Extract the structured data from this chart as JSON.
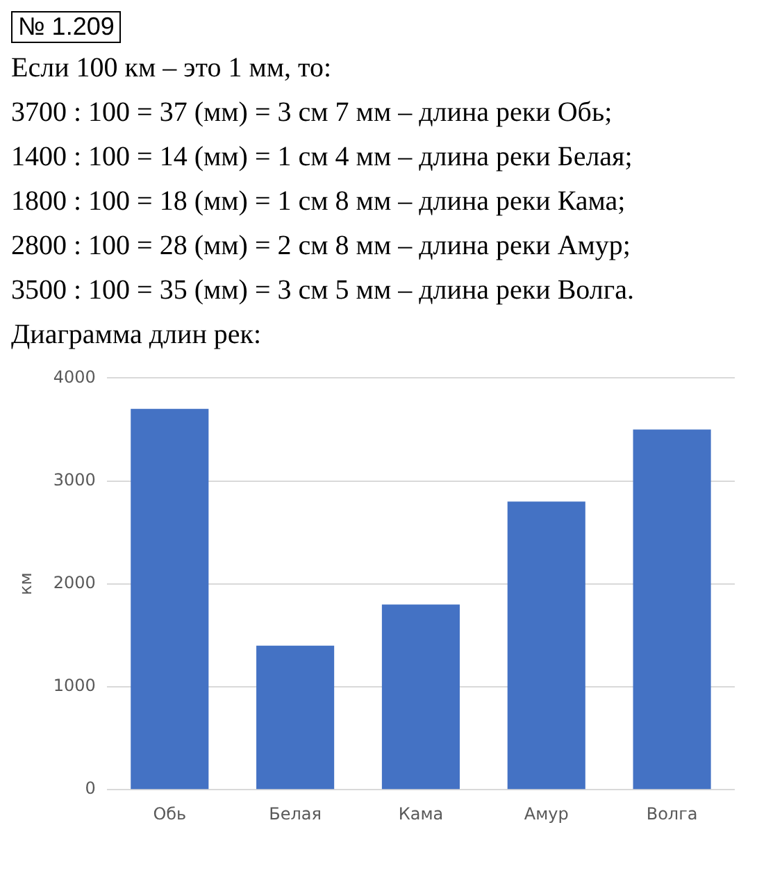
{
  "chart_data": {
    "type": "bar",
    "title": "№ 1.209",
    "annotations": [
      "Если 100 км – это 1 мм, то:",
      "3700 : 100 = 37 (мм) = 3 см 7 мм – длина реки Обь;",
      "1400 : 100 = 14 (мм) = 1 см 4 мм – длина реки Белая;",
      "1800 : 100 = 18 (мм) = 1 см 8 мм – длина реки Кама;",
      "2800 : 100 = 28 (мм) = 2 см 8 мм – длина реки Амур;",
      "3500 : 100 = 35 (мм) = 3 см 5 мм – длина реки Волга.",
      "Диаграмма длин рек:"
    ],
    "categories": [
      "Обь",
      "Белая",
      "Кама",
      "Амур",
      "Волга"
    ],
    "values": [
      3700,
      1400,
      1800,
      2800,
      3500
    ],
    "color": "#4472c4",
    "ylabel": "км",
    "ylim": [
      0,
      4000
    ],
    "yticks": [
      0,
      1000,
      2000,
      3000,
      4000
    ],
    "grid": "y"
  }
}
